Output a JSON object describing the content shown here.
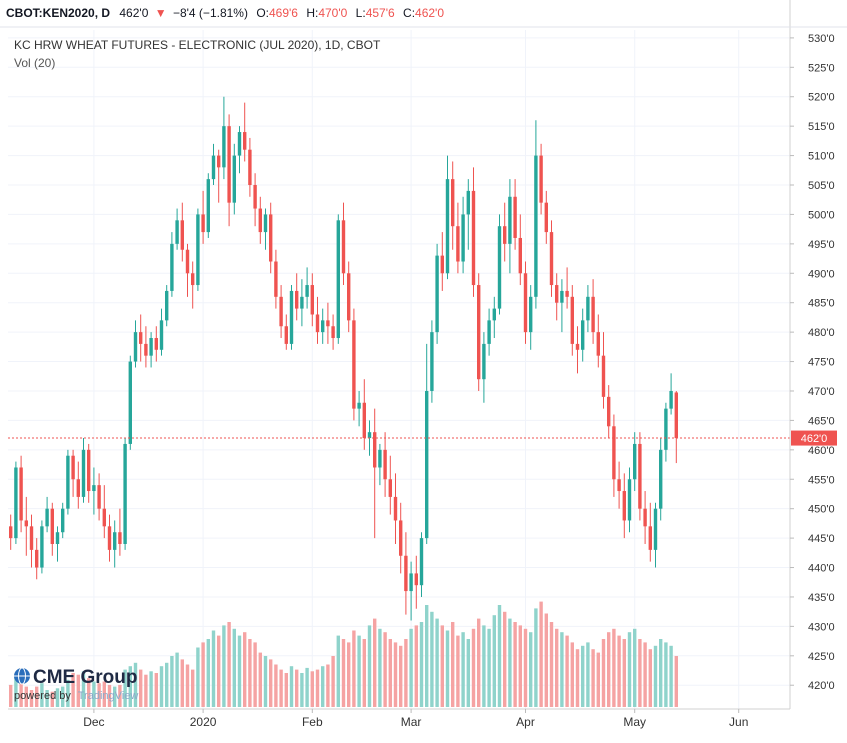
{
  "header": {
    "symbol": "CBOT:KEN2020, D",
    "last": "462'0",
    "change_arrow": "▼",
    "change": "−8'4 (−1.81%)",
    "o_label": "O:",
    "o_value": "469'6",
    "h_label": "H:",
    "h_value": "470'0",
    "l_label": "L:",
    "l_value": "457'6",
    "c_label": "C:",
    "c_value": "462'0"
  },
  "legend": {
    "title": "KC HRW WHEAT FUTURES - ELECTRONIC (JUL 2020), 1D, CBOT",
    "volume_label": "Vol (20)"
  },
  "price_tag": "462'0",
  "branding": {
    "logo": "CME Group",
    "powered_prefix": "powered by",
    "powered_brand": "TradingView"
  },
  "colors": {
    "up": "#26a69a",
    "down": "#ef5350",
    "up_volume": "#8fd3cb",
    "down_volume": "#f5a3a3",
    "last_price_line": "#ef5350",
    "axis_text": "#333333"
  },
  "chart_data": {
    "type": "candlestick",
    "ylim": [
      418,
      531
    ],
    "y_ticks": [
      {
        "value": 530,
        "label": "530'0"
      },
      {
        "value": 525,
        "label": "525'0"
      },
      {
        "value": 520,
        "label": "520'0"
      },
      {
        "value": 515,
        "label": "515'0"
      },
      {
        "value": 510,
        "label": "510'0"
      },
      {
        "value": 505,
        "label": "505'0"
      },
      {
        "value": 500,
        "label": "500'0"
      },
      {
        "value": 495,
        "label": "495'0"
      },
      {
        "value": 490,
        "label": "490'0"
      },
      {
        "value": 485,
        "label": "485'0"
      },
      {
        "value": 480,
        "label": "480'0"
      },
      {
        "value": 475,
        "label": "475'0"
      },
      {
        "value": 470,
        "label": "470'0"
      },
      {
        "value": 465,
        "label": "465'0"
      },
      {
        "value": 460,
        "label": "460'0"
      },
      {
        "value": 455,
        "label": "455'0"
      },
      {
        "value": 450,
        "label": "450'0"
      },
      {
        "value": 445,
        "label": "445'0"
      },
      {
        "value": 440,
        "label": "440'0"
      },
      {
        "value": 435,
        "label": "435'0"
      },
      {
        "value": 430,
        "label": "430'0"
      },
      {
        "value": 425,
        "label": "425'0"
      },
      {
        "value": 420,
        "label": "420'0"
      }
    ],
    "x_ticks": [
      {
        "index": 16,
        "label": "Dec"
      },
      {
        "index": 37,
        "label": "2020"
      },
      {
        "index": 58,
        "label": "Feb"
      },
      {
        "index": 77,
        "label": "Mar"
      },
      {
        "index": 99,
        "label": "Apr"
      },
      {
        "index": 120,
        "label": "May"
      },
      {
        "index": 140,
        "label": "Jun"
      }
    ],
    "last_price": 462,
    "volume_max": 100,
    "bars": [
      [
        447,
        449,
        443,
        445,
        13
      ],
      [
        445,
        458,
        444,
        457,
        18
      ],
      [
        457,
        459,
        446,
        448,
        15
      ],
      [
        448,
        452,
        442,
        447,
        12
      ],
      [
        447,
        449,
        440,
        443,
        10
      ],
      [
        443,
        445,
        438,
        440,
        12
      ],
      [
        440,
        448,
        439,
        447,
        14
      ],
      [
        447,
        452,
        446,
        450,
        10
      ],
      [
        450,
        451,
        442,
        444,
        9
      ],
      [
        444,
        447,
        441,
        446,
        11
      ],
      [
        446,
        451,
        445,
        450,
        12
      ],
      [
        450,
        460,
        449,
        459,
        16
      ],
      [
        459,
        460,
        452,
        455,
        20
      ],
      [
        455,
        458,
        450,
        452,
        19
      ],
      [
        452,
        462,
        451,
        460,
        21
      ],
      [
        460,
        461,
        451,
        453,
        17
      ],
      [
        453,
        457,
        449,
        454,
        15
      ],
      [
        454,
        456,
        448,
        450,
        14
      ],
      [
        450,
        454,
        445,
        447,
        15
      ],
      [
        447,
        449,
        441,
        443,
        13
      ],
      [
        443,
        448,
        440,
        446,
        12
      ],
      [
        446,
        450,
        442,
        444,
        13
      ],
      [
        444,
        462,
        443,
        461,
        22
      ],
      [
        461,
        476,
        460,
        475,
        24
      ],
      [
        475,
        482,
        474,
        480,
        26
      ],
      [
        480,
        483,
        475,
        478,
        22
      ],
      [
        478,
        481,
        474,
        476,
        19
      ],
      [
        476,
        480,
        474,
        479,
        21
      ],
      [
        479,
        481,
        475,
        477,
        20
      ],
      [
        477,
        484,
        476,
        482,
        24
      ],
      [
        482,
        488,
        481,
        487,
        26
      ],
      [
        487,
        497,
        486,
        495,
        30
      ],
      [
        495,
        501,
        494,
        499,
        32
      ],
      [
        499,
        502,
        492,
        494,
        28
      ],
      [
        494,
        495,
        486,
        490,
        25
      ],
      [
        490,
        492,
        484,
        488,
        22
      ],
      [
        488,
        501,
        487,
        500,
        35
      ],
      [
        500,
        504,
        495,
        497,
        38
      ],
      [
        497,
        507,
        496,
        506,
        40
      ],
      [
        506,
        512,
        505,
        510,
        45
      ],
      [
        510,
        511,
        502,
        508,
        42
      ],
      [
        508,
        520,
        506,
        515,
        48
      ],
      [
        515,
        517,
        498,
        502,
        50
      ],
      [
        502,
        512,
        500,
        510,
        46
      ],
      [
        510,
        515,
        507,
        514,
        42
      ],
      [
        514,
        519,
        509,
        511,
        44
      ],
      [
        511,
        513,
        503,
        505,
        40
      ],
      [
        505,
        507,
        498,
        501,
        38
      ],
      [
        501,
        503,
        495,
        497,
        32
      ],
      [
        497,
        501,
        494,
        500,
        30
      ],
      [
        500,
        502,
        490,
        492,
        28
      ],
      [
        492,
        494,
        484,
        486,
        25
      ],
      [
        486,
        488,
        479,
        481,
        22
      ],
      [
        481,
        483,
        477,
        478,
        20
      ],
      [
        478,
        488,
        477,
        487,
        24
      ],
      [
        487,
        490,
        482,
        484,
        22
      ],
      [
        484,
        489,
        481,
        486,
        20
      ],
      [
        486,
        491,
        484,
        488,
        23
      ],
      [
        488,
        490,
        481,
        483,
        21
      ],
      [
        483,
        486,
        478,
        480,
        22
      ],
      [
        480,
        484,
        478,
        482,
        24
      ],
      [
        482,
        485,
        478,
        481,
        25
      ],
      [
        481,
        483,
        477,
        479,
        30
      ],
      [
        479,
        500,
        478,
        499,
        42
      ],
      [
        499,
        502,
        488,
        490,
        40
      ],
      [
        490,
        492,
        480,
        482,
        38
      ],
      [
        482,
        484,
        465,
        467,
        45
      ],
      [
        467,
        470,
        464,
        468,
        42
      ],
      [
        468,
        472,
        460,
        462,
        40
      ],
      [
        462,
        465,
        459,
        463,
        48
      ],
      [
        463,
        467,
        445,
        457,
        52
      ],
      [
        457,
        461,
        454,
        460,
        46
      ],
      [
        460,
        463,
        452,
        455,
        44
      ],
      [
        455,
        459,
        449,
        452,
        40
      ],
      [
        452,
        456,
        444,
        448,
        38
      ],
      [
        448,
        451,
        439,
        442,
        36
      ],
      [
        442,
        446,
        432,
        436,
        40
      ],
      [
        436,
        441,
        431,
        439,
        46
      ],
      [
        439,
        442,
        433,
        437,
        48
      ],
      [
        437,
        446,
        435,
        445,
        50
      ],
      [
        445,
        478,
        444,
        470,
        60
      ],
      [
        470,
        482,
        468,
        480,
        56
      ],
      [
        480,
        495,
        478,
        493,
        52
      ],
      [
        493,
        497,
        487,
        490,
        48
      ],
      [
        490,
        510,
        489,
        506,
        45
      ],
      [
        506,
        509,
        494,
        498,
        50
      ],
      [
        498,
        502,
        490,
        492,
        42
      ],
      [
        492,
        503,
        490,
        500,
        44
      ],
      [
        500,
        506,
        494,
        504,
        40
      ],
      [
        504,
        508,
        486,
        488,
        46
      ],
      [
        488,
        490,
        470,
        472,
        52
      ],
      [
        472,
        480,
        468,
        478,
        48
      ],
      [
        478,
        484,
        476,
        482,
        46
      ],
      [
        482,
        486,
        479,
        484,
        54
      ],
      [
        484,
        500,
        483,
        498,
        60
      ],
      [
        498,
        502,
        492,
        495,
        56
      ],
      [
        495,
        506,
        490,
        503,
        52
      ],
      [
        503,
        506,
        494,
        496,
        50
      ],
      [
        496,
        500,
        488,
        490,
        48
      ],
      [
        490,
        492,
        478,
        480,
        46
      ],
      [
        480,
        488,
        477,
        486,
        44
      ],
      [
        486,
        516,
        484,
        510,
        58
      ],
      [
        510,
        512,
        500,
        502,
        62
      ],
      [
        502,
        504,
        495,
        497,
        55
      ],
      [
        497,
        499,
        486,
        488,
        50
      ],
      [
        488,
        490,
        482,
        485,
        46
      ],
      [
        485,
        489,
        480,
        487,
        44
      ],
      [
        487,
        491,
        484,
        486,
        42
      ],
      [
        486,
        488,
        476,
        478,
        38
      ],
      [
        478,
        481,
        473,
        477,
        34
      ],
      [
        477,
        484,
        475,
        482,
        36
      ],
      [
        482,
        488,
        480,
        486,
        38
      ],
      [
        486,
        489,
        478,
        480,
        34
      ],
      [
        480,
        483,
        474,
        476,
        32
      ],
      [
        476,
        480,
        467,
        469,
        40
      ],
      [
        469,
        471,
        462,
        464,
        44
      ],
      [
        464,
        466,
        452,
        455,
        46
      ],
      [
        455,
        458,
        450,
        453,
        42
      ],
      [
        453,
        456,
        445,
        448,
        40
      ],
      [
        448,
        457,
        446,
        455,
        44
      ],
      [
        455,
        463,
        453,
        461,
        46
      ],
      [
        461,
        463,
        448,
        450,
        40
      ],
      [
        450,
        453,
        444,
        447,
        38
      ],
      [
        447,
        451,
        441,
        443,
        34
      ],
      [
        443,
        451,
        440,
        450,
        36
      ],
      [
        450,
        462,
        448,
        460,
        40
      ],
      [
        460,
        468,
        458,
        467,
        38
      ],
      [
        467,
        473,
        466,
        470,
        36
      ],
      [
        469.75,
        470,
        457.75,
        462,
        30
      ]
    ]
  }
}
